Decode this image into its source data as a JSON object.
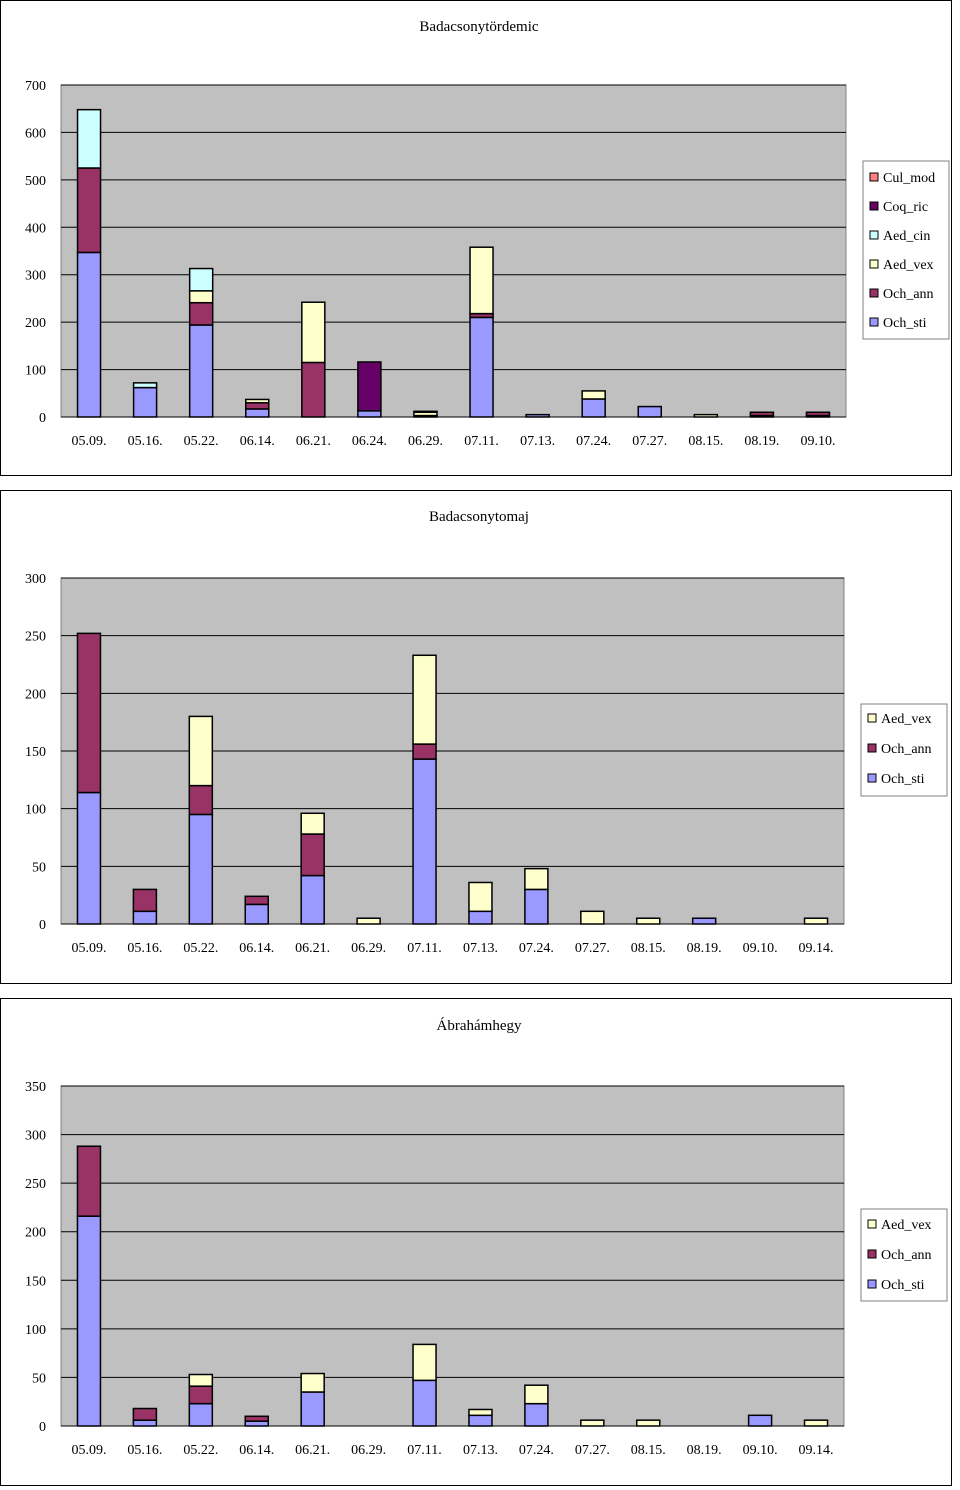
{
  "chart_data": [
    {
      "type": "bar",
      "stacked": true,
      "title": "Badacsonytördemic",
      "categories": [
        "05.09.",
        "05.16.",
        "05.22.",
        "06.14.",
        "06.21.",
        "06.24.",
        "06.29.",
        "07.11.",
        "07.13.",
        "07.24.",
        "07.27.",
        "08.15.",
        "08.19.",
        "09.10."
      ],
      "ylim": [
        0,
        700
      ],
      "yticks": [
        0,
        100,
        200,
        300,
        400,
        500,
        600,
        700
      ],
      "grid": true,
      "legend_position": "right",
      "series": [
        {
          "name": "Och_sti",
          "color": "#9999ff",
          "values": [
            347,
            62,
            194,
            17,
            0,
            13,
            3,
            210,
            5,
            38,
            22,
            0,
            3,
            3
          ]
        },
        {
          "name": "Och_ann",
          "color": "#993366",
          "values": [
            178,
            0,
            47,
            13,
            115,
            0,
            0,
            8,
            0,
            0,
            0,
            0,
            7,
            7
          ]
        },
        {
          "name": "Aed_vex",
          "color": "#ffffcc",
          "values": [
            0,
            0,
            25,
            7,
            127,
            0,
            7,
            140,
            0,
            17,
            0,
            5,
            0,
            0
          ]
        },
        {
          "name": "Aed_cin",
          "color": "#ccffff",
          "values": [
            123,
            10,
            47,
            0,
            0,
            0,
            2,
            0,
            0,
            0,
            0,
            0,
            0,
            0
          ]
        },
        {
          "name": "Coq_ric",
          "color": "#660066",
          "values": [
            0,
            0,
            0,
            0,
            0,
            103,
            0,
            0,
            0,
            0,
            0,
            0,
            0,
            0
          ]
        },
        {
          "name": "Cul_mod",
          "color": "#ff8080",
          "values": [
            0,
            0,
            0,
            0,
            0,
            0,
            0,
            0,
            0,
            0,
            0,
            0,
            0,
            0
          ]
        }
      ]
    },
    {
      "type": "bar",
      "stacked": true,
      "title": "Badacsonytomaj",
      "categories": [
        "05.09.",
        "05.16.",
        "05.22.",
        "06.14.",
        "06.21.",
        "06.29.",
        "07.11.",
        "07.13.",
        "07.24.",
        "07.27.",
        "08.15.",
        "08.19.",
        "09.10.",
        "09.14."
      ],
      "ylim": [
        0,
        300
      ],
      "yticks": [
        0,
        50,
        100,
        150,
        200,
        250,
        300
      ],
      "grid": true,
      "legend_position": "right",
      "series": [
        {
          "name": "Och_sti",
          "color": "#9999ff",
          "values": [
            114,
            11,
            95,
            17,
            42,
            0,
            143,
            11,
            30,
            0,
            0,
            5,
            0,
            0
          ]
        },
        {
          "name": "Och_ann",
          "color": "#993366",
          "values": [
            138,
            19,
            25,
            7,
            36,
            0,
            13,
            0,
            0,
            0,
            0,
            0,
            0,
            0
          ]
        },
        {
          "name": "Aed_vex",
          "color": "#ffffcc",
          "values": [
            0,
            0,
            60,
            0,
            18,
            5,
            77,
            25,
            18,
            11,
            5,
            0,
            0,
            5
          ]
        }
      ]
    },
    {
      "type": "bar",
      "stacked": true,
      "title": "Ábrahámhegy",
      "categories": [
        "05.09.",
        "05.16.",
        "05.22.",
        "06.14.",
        "06.21.",
        "06.29.",
        "07.11.",
        "07.13.",
        "07.24.",
        "07.27.",
        "08.15.",
        "08.19.",
        "09.10.",
        "09.14."
      ],
      "ylim": [
        0,
        350
      ],
      "yticks": [
        0,
        50,
        100,
        150,
        200,
        250,
        300,
        350
      ],
      "grid": true,
      "legend_position": "right",
      "series": [
        {
          "name": "Och_sti",
          "color": "#9999ff",
          "values": [
            216,
            6,
            23,
            5,
            35,
            0,
            47,
            11,
            23,
            0,
            0,
            0,
            11,
            0
          ]
        },
        {
          "name": "Och_ann",
          "color": "#993366",
          "values": [
            72,
            12,
            18,
            5,
            0,
            0,
            0,
            0,
            0,
            0,
            0,
            0,
            0,
            0
          ]
        },
        {
          "name": "Aed_vex",
          "color": "#ffffcc",
          "values": [
            0,
            0,
            12,
            0,
            19,
            0,
            37,
            6,
            19,
            6,
            6,
            0,
            0,
            6
          ]
        }
      ]
    }
  ]
}
